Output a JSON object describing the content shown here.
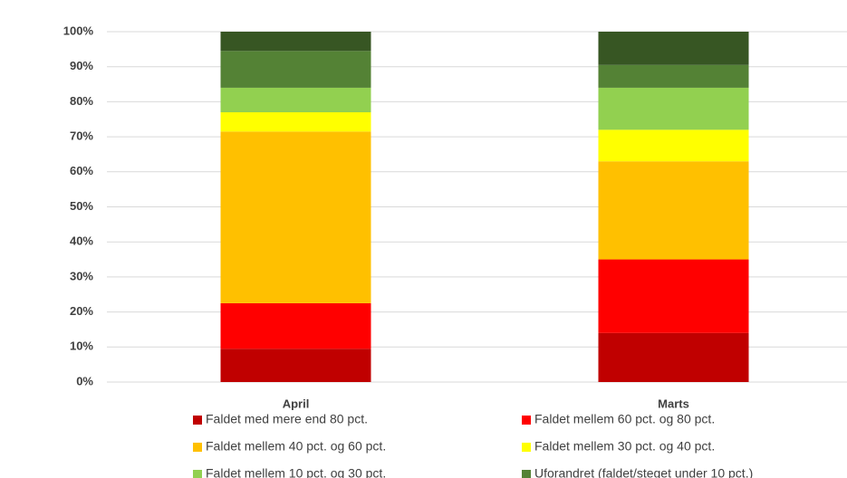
{
  "chart_data": {
    "type": "stacked_bar",
    "categories": [
      "April",
      "Marts"
    ],
    "series": [
      {
        "name": "Faldet med mere end 80 pct.",
        "color": "#c00000",
        "values": [
          9.5,
          14
        ]
      },
      {
        "name": "Faldet mellem 60 pct. og 80 pct.",
        "color": "#ff0000",
        "values": [
          13,
          21
        ]
      },
      {
        "name": "Faldet mellem 40 pct. og 60 pct.",
        "color": "#ffc000",
        "values": [
          49,
          28
        ]
      },
      {
        "name": "Faldet mellem 30 pct. og 40 pct.",
        "color": "#ffff00",
        "values": [
          5.5,
          9
        ]
      },
      {
        "name": "Faldet mellem 10 pct. og 30 pct.",
        "color": "#92d050",
        "values": [
          7,
          12
        ]
      },
      {
        "name": "Uforandret (faldet/steget under 10 pct.)",
        "color": "#548235",
        "values": [
          10.5,
          6.5
        ]
      },
      {
        "color": "#375623",
        "values": [
          5.5,
          9.5
        ]
      }
    ],
    "ylim": [
      0,
      100
    ],
    "yticks": [
      {
        "value": 0,
        "label": "0%"
      },
      {
        "value": 10,
        "label": "10%"
      },
      {
        "value": 20,
        "label": "20%"
      },
      {
        "value": 30,
        "label": "30%"
      },
      {
        "value": 40,
        "label": "40%"
      },
      {
        "value": 50,
        "label": "50%"
      },
      {
        "value": 60,
        "label": "60%"
      },
      {
        "value": 70,
        "label": "70%"
      },
      {
        "value": 80,
        "label": "80%"
      },
      {
        "value": 90,
        "label": "90%"
      },
      {
        "value": 100,
        "label": "100%"
      }
    ],
    "grid": true
  }
}
